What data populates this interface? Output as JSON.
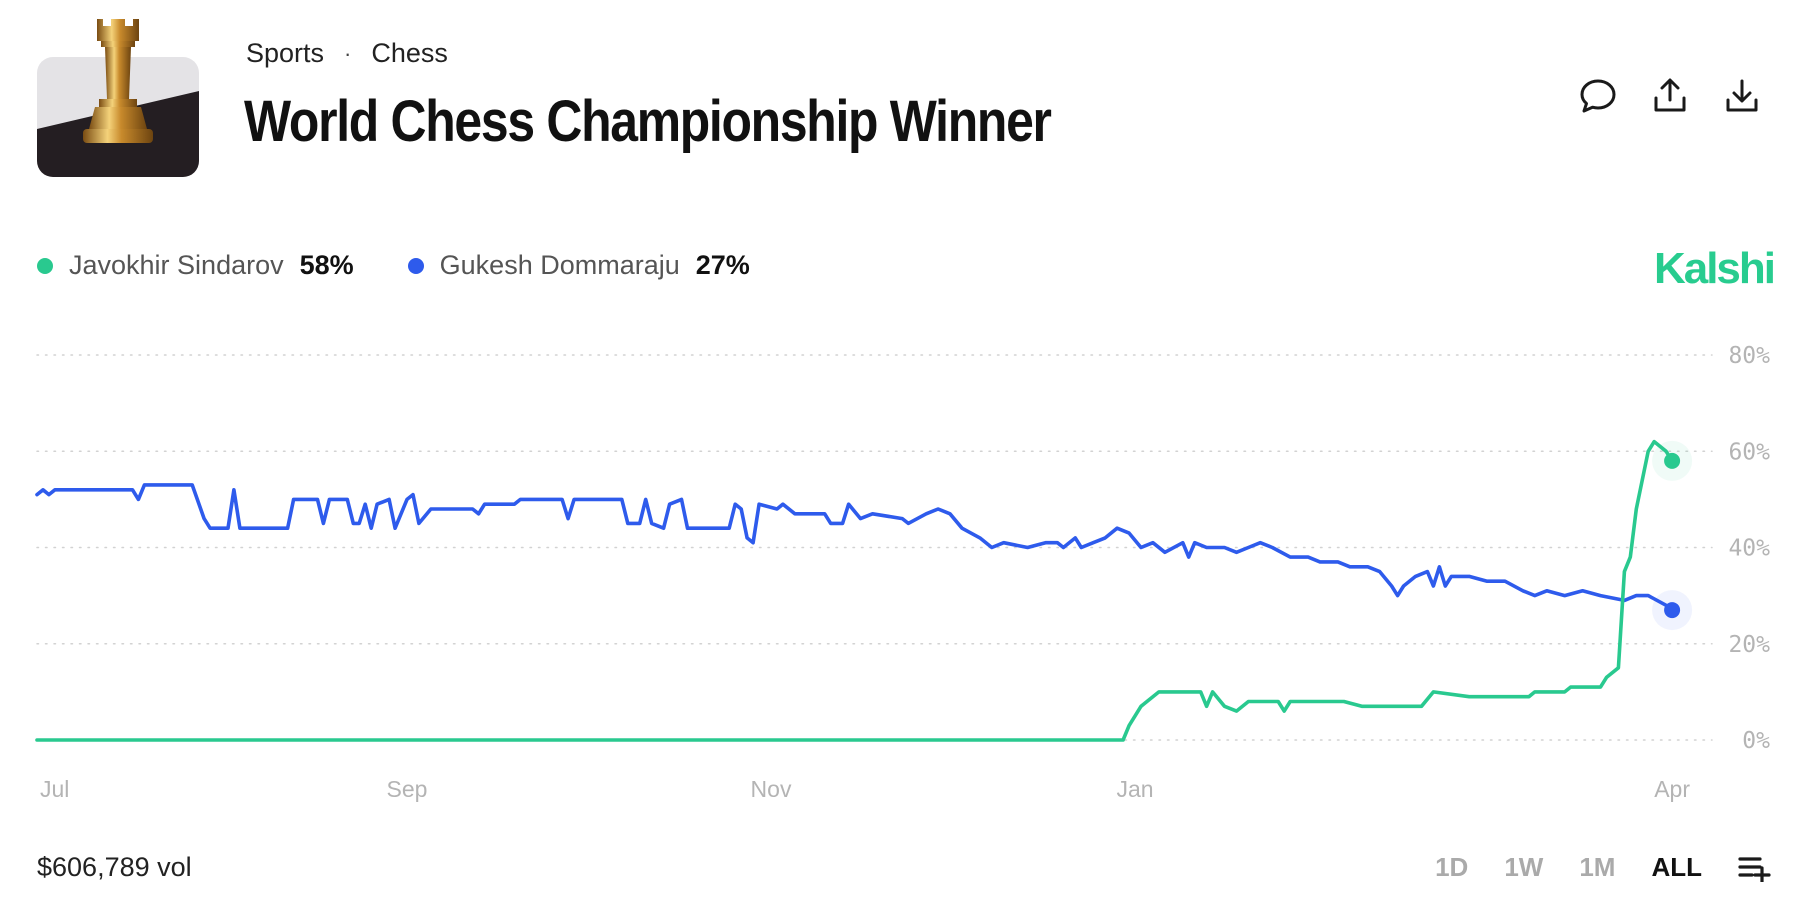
{
  "header": {
    "breadcrumb": [
      "Sports",
      "Chess"
    ],
    "breadcrumb_separator": "·",
    "title": "World Chess Championship Winner",
    "icon": "chess-rook-thumbnail"
  },
  "actions": [
    {
      "icon": "comment-icon"
    },
    {
      "icon": "share-icon"
    },
    {
      "icon": "download-icon"
    }
  ],
  "legend": [
    {
      "name": "Javokhir Sindarov",
      "value": "58%",
      "color": "#29c98f"
    },
    {
      "name": "Gukesh Dommaraju",
      "value": "27%",
      "color": "#2e5bec"
    }
  ],
  "brand": {
    "name": "Kalshi",
    "color": "#28cc8f"
  },
  "chart_data": {
    "type": "line",
    "y_range": [
      0,
      80
    ],
    "y_ticks": [
      "80%",
      "60%",
      "40%",
      "20%",
      "0%"
    ],
    "y_tick_values": [
      80,
      60,
      40,
      20,
      0
    ],
    "x_range": [
      "Jul 1",
      "Apr 4"
    ],
    "x_ticks": [
      {
        "label": "Jul",
        "date": "Jul 1"
      },
      {
        "label": "Sep",
        "date": "Sep 1"
      },
      {
        "label": "Nov",
        "date": "Nov 1"
      },
      {
        "label": "Jan",
        "date": "Jan 1"
      },
      {
        "label": "Apr",
        "date": "Apr 1"
      }
    ],
    "grid": "horizontal-dotted",
    "series": [
      {
        "name": "Javokhir Sindarov",
        "color": "#29c98f",
        "points": [
          [
            "Jul 1",
            0
          ],
          [
            "Dec 30",
            0
          ],
          [
            "Dec 31",
            3
          ],
          [
            "Jan 2",
            7
          ],
          [
            "Jan 5",
            10
          ],
          [
            "Jan 12",
            10
          ],
          [
            "Jan 13",
            7
          ],
          [
            "Jan 14",
            10
          ],
          [
            "Jan 16",
            7
          ],
          [
            "Jan 18",
            6
          ],
          [
            "Jan 20",
            8
          ],
          [
            "Jan 25",
            8
          ],
          [
            "Jan 26",
            6
          ],
          [
            "Jan 27",
            8
          ],
          [
            "Feb 5",
            8
          ],
          [
            "Feb 8",
            7
          ],
          [
            "Feb 18",
            7
          ],
          [
            "Feb 20",
            10
          ],
          [
            "Feb 26",
            9
          ],
          [
            "Mar 8",
            9
          ],
          [
            "Mar 9",
            10
          ],
          [
            "Mar 14",
            10
          ],
          [
            "Mar 15",
            11
          ],
          [
            "Mar 20",
            11
          ],
          [
            "Mar 21",
            13
          ],
          [
            "Mar 23",
            15
          ],
          [
            "Mar 24",
            35
          ],
          [
            "Mar 25",
            38
          ],
          [
            "Mar 26",
            48
          ],
          [
            "Mar 28",
            60
          ],
          [
            "Mar 29",
            62
          ],
          [
            "Mar 31",
            60
          ],
          [
            "Apr 1",
            58
          ]
        ]
      },
      {
        "name": "Gukesh Dommaraju",
        "color": "#2e5bec",
        "points": [
          [
            "Jul 1",
            51
          ],
          [
            "Jul 2",
            52
          ],
          [
            "Jul 3",
            51
          ],
          [
            "Jul 4",
            52
          ],
          [
            "Jul 17",
            52
          ],
          [
            "Jul 18",
            50
          ],
          [
            "Jul 19",
            53
          ],
          [
            "Jul 27",
            53
          ],
          [
            "Jul 29",
            46
          ],
          [
            "Jul 30",
            44
          ],
          [
            "Aug 2",
            44
          ],
          [
            "Aug 3",
            52
          ],
          [
            "Aug 4",
            44
          ],
          [
            "Aug 12",
            44
          ],
          [
            "Aug 13",
            50
          ],
          [
            "Aug 17",
            50
          ],
          [
            "Aug 18",
            45
          ],
          [
            "Aug 19",
            50
          ],
          [
            "Aug 22",
            50
          ],
          [
            "Aug 23",
            45
          ],
          [
            "Aug 24",
            45
          ],
          [
            "Aug 25",
            49
          ],
          [
            "Aug 26",
            44
          ],
          [
            "Aug 27",
            49
          ],
          [
            "Aug 29",
            50
          ],
          [
            "Aug 30",
            44
          ],
          [
            "Sep 1",
            50
          ],
          [
            "Sep 2",
            51
          ],
          [
            "Sep 3",
            45
          ],
          [
            "Sep 5",
            48
          ],
          [
            "Sep 12",
            48
          ],
          [
            "Sep 13",
            47
          ],
          [
            "Sep 14",
            49
          ],
          [
            "Sep 19",
            49
          ],
          [
            "Sep 20",
            50
          ],
          [
            "Sep 27",
            50
          ],
          [
            "Sep 28",
            46
          ],
          [
            "Sep 29",
            50
          ],
          [
            "Oct 7",
            50
          ],
          [
            "Oct 8",
            45
          ],
          [
            "Oct 10",
            45
          ],
          [
            "Oct 11",
            50
          ],
          [
            "Oct 12",
            45
          ],
          [
            "Oct 14",
            44
          ],
          [
            "Oct 15",
            49
          ],
          [
            "Oct 17",
            50
          ],
          [
            "Oct 18",
            44
          ],
          [
            "Oct 25",
            44
          ],
          [
            "Oct 26",
            49
          ],
          [
            "Oct 27",
            48
          ],
          [
            "Oct 28",
            42
          ],
          [
            "Oct 29",
            41
          ],
          [
            "Oct 30",
            49
          ],
          [
            "Nov 2",
            48
          ],
          [
            "Nov 3",
            49
          ],
          [
            "Nov 5",
            47
          ],
          [
            "Nov 10",
            47
          ],
          [
            "Nov 11",
            45
          ],
          [
            "Nov 13",
            45
          ],
          [
            "Nov 14",
            49
          ],
          [
            "Nov 16",
            46
          ],
          [
            "Nov 18",
            47
          ],
          [
            "Nov 23",
            46
          ],
          [
            "Nov 24",
            45
          ],
          [
            "Nov 27",
            47
          ],
          [
            "Nov 29",
            48
          ],
          [
            "Dec 1",
            47
          ],
          [
            "Dec 3",
            44
          ],
          [
            "Dec 6",
            42
          ],
          [
            "Dec 8",
            40
          ],
          [
            "Dec 10",
            41
          ],
          [
            "Dec 14",
            40
          ],
          [
            "Dec 17",
            41
          ],
          [
            "Dec 19",
            41
          ],
          [
            "Dec 20",
            40
          ],
          [
            "Dec 22",
            42
          ],
          [
            "Dec 23",
            40
          ],
          [
            "Dec 25",
            41
          ],
          [
            "Dec 27",
            42
          ],
          [
            "Dec 29",
            44
          ],
          [
            "Dec 31",
            43
          ],
          [
            "Jan 2",
            40
          ],
          [
            "Jan 4",
            41
          ],
          [
            "Jan 6",
            39
          ],
          [
            "Jan 9",
            41
          ],
          [
            "Jan 10",
            38
          ],
          [
            "Jan 11",
            41
          ],
          [
            "Jan 13",
            40
          ],
          [
            "Jan 16",
            40
          ],
          [
            "Jan 18",
            39
          ],
          [
            "Jan 20",
            40
          ],
          [
            "Jan 22",
            41
          ],
          [
            "Jan 24",
            40
          ],
          [
            "Jan 27",
            38
          ],
          [
            "Jan 30",
            38
          ],
          [
            "Feb 1",
            37
          ],
          [
            "Feb 4",
            37
          ],
          [
            "Feb 6",
            36
          ],
          [
            "Feb 9",
            36
          ],
          [
            "Feb 11",
            35
          ],
          [
            "Feb 13",
            32
          ],
          [
            "Feb 14",
            30
          ],
          [
            "Feb 15",
            32
          ],
          [
            "Feb 17",
            34
          ],
          [
            "Feb 19",
            35
          ],
          [
            "Feb 20",
            32
          ],
          [
            "Feb 21",
            36
          ],
          [
            "Feb 22",
            32
          ],
          [
            "Feb 23",
            34
          ],
          [
            "Feb 26",
            34
          ],
          [
            "Mar 1",
            33
          ],
          [
            "Mar 4",
            33
          ],
          [
            "Mar 7",
            31
          ],
          [
            "Mar 9",
            30
          ],
          [
            "Mar 11",
            31
          ],
          [
            "Mar 14",
            30
          ],
          [
            "Mar 17",
            31
          ],
          [
            "Mar 20",
            30
          ],
          [
            "Mar 24",
            29
          ],
          [
            "Mar 26",
            30
          ],
          [
            "Mar 28",
            30
          ],
          [
            "Mar 31",
            28
          ],
          [
            "Apr 1",
            27
          ]
        ]
      }
    ]
  },
  "footer": {
    "volume": "$606,789 vol",
    "ranges": [
      "1D",
      "1W",
      "1M",
      "ALL"
    ],
    "active_range": "ALL",
    "menu_icon": "playlist-add-icon"
  }
}
